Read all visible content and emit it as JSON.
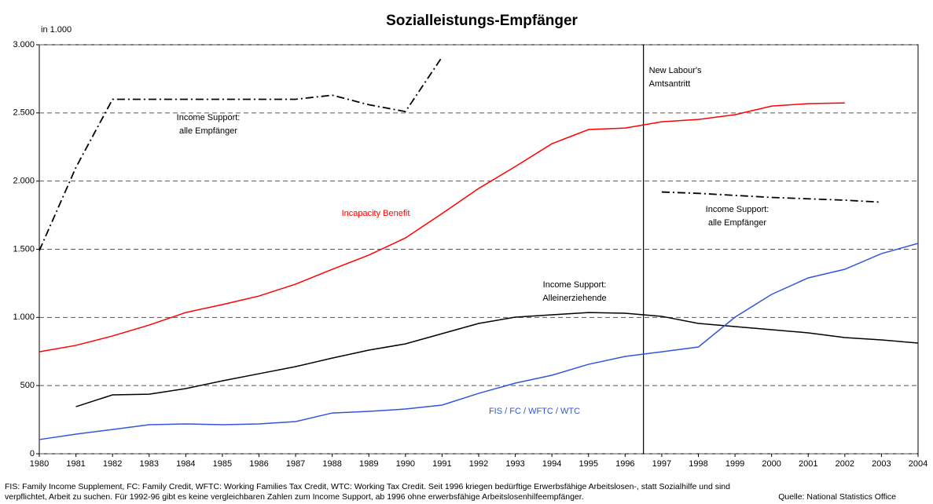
{
  "chart_data": {
    "type": "line",
    "title": "Sozialleistungs-Empfänger",
    "y_unit_label": "in 1.000",
    "x": [
      1980,
      1981,
      1982,
      1983,
      1984,
      1985,
      1986,
      1987,
      1988,
      1989,
      1990,
      1991,
      1992,
      1993,
      1994,
      1995,
      1996,
      1997,
      1998,
      1999,
      2000,
      2001,
      2002,
      2003,
      2004
    ],
    "xlim": [
      1980,
      2004
    ],
    "xticks": [
      1980,
      1981,
      1982,
      1983,
      1984,
      1985,
      1986,
      1987,
      1988,
      1989,
      1990,
      1991,
      1992,
      1993,
      1994,
      1995,
      1996,
      1997,
      1998,
      1999,
      2000,
      2001,
      2002,
      2003,
      2004
    ],
    "ylim": [
      0,
      3000
    ],
    "yticks": [
      0,
      500,
      {
        "value": 1000,
        "label": "1.000"
      },
      {
        "value": 1500,
        "label": "1.500"
      },
      {
        "value": 2000,
        "label": "2.000"
      },
      {
        "value": 2500,
        "label": "2.500"
      },
      {
        "value": 3000,
        "label": "3.000"
      }
    ],
    "grid": true,
    "series": [
      {
        "color": "#000000",
        "style": "dashdot",
        "values": [
          1490,
          2100,
          2600,
          2600,
          2600,
          2600,
          2600,
          2600,
          2630,
          2560,
          2510,
          2910,
          null,
          null,
          null,
          null,
          null,
          1920,
          1910,
          1895,
          1880,
          1870,
          1860,
          1845,
          null
        ]
      },
      {
        "color": "#ff0000",
        "style": "solid",
        "values": [
          748,
          795,
          864,
          944,
          1036,
          1094,
          1157,
          1244,
          1353,
          1457,
          1583,
          1762,
          1946,
          2107,
          2274,
          2378,
          2389,
          2435,
          2452,
          2487,
          2550,
          2568,
          2573,
          null,
          null
        ]
      },
      {
        "color": "#000000",
        "style": "solid",
        "values": [
          null,
          345,
          432,
          437,
          478,
          535,
          587,
          639,
          702,
          760,
          806,
          881,
          956,
          1002,
          1019,
          1036,
          1031,
          1008,
          956,
          933,
          910,
          887,
          852,
          835,
          812
        ]
      },
      {
        "color": "#3355dd",
        "style": "solid",
        "values": [
          104,
          144,
          178,
          213,
          219,
          213,
          219,
          236,
          299,
          311,
          328,
          357,
          443,
          518,
          576,
          656,
          714,
          748,
          783,
          1002,
          1169,
          1290,
          1353,
          1468,
          1543
        ]
      }
    ],
    "vline": {
      "x": 1996.5,
      "label": [
        "New Labour's",
        "Amtsantritt"
      ]
    },
    "annotations": [
      {
        "text": [
          "Income Support:",
          "alle Empfänger"
        ],
        "color": "#000000"
      },
      {
        "text": [
          "Income Support:",
          "alle Empfänger"
        ],
        "color": "#000000"
      },
      {
        "text": [
          "Incapacity Benefit"
        ],
        "color": "#ff0000"
      },
      {
        "text": [
          "Income Support:",
          "Alleinerziehende"
        ],
        "color": "#000000"
      },
      {
        "text": [
          "FIS / FC / WFTC / WTC"
        ],
        "color": "#3355dd"
      }
    ],
    "footnote": [
      "FIS: Family Income Supplement, FC: Family Credit, WFTC: Working Families Tax Credit, WTC: Working Tax Credit. Seit 1996 kriegen bedürftige Erwerbsfähige Arbeitslosen-,  statt Sozialhilfe und sind",
      "verpflichtet, Arbeit zu suchen. Für 1992-96 gibt es keine vergleichbaren Zahlen zum Income Support, ab 1996 ohne erwerbsfähige Arbeitslosenhilfeempfänger."
    ],
    "source": "Quelle: National Statistics Office"
  }
}
